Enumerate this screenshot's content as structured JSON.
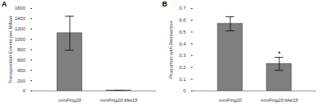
{
  "chart_data": [
    {
      "type": "bar",
      "title": "A",
      "y_label": "Transposition Events per Million",
      "categories": [
        "mmFing20",
        "mmFing20:Met15"
      ],
      "values": [
        1120,
        5
      ],
      "errors": [
        330,
        3
      ],
      "color": "#7f7f7f",
      "ylim": [
        0,
        1600
      ],
      "yticks": [
        0,
        200,
        400,
        600,
        800,
        1000,
        1200,
        1400,
        1600
      ],
      "grid": false
    },
    {
      "type": "bar",
      "title": "B",
      "y_label": "Proportion with Reinsertion",
      "categories": [
        "mmFing20",
        "mmFing20:Met15"
      ],
      "values": [
        0.57,
        0.23
      ],
      "errors": [
        0.06,
        0.055
      ],
      "color": "#7f7f7f",
      "ylim": [
        0,
        0.7
      ],
      "yticks": [
        0,
        0.1,
        0.2,
        0.3,
        0.4,
        0.5,
        0.6,
        0.7
      ],
      "grid": false,
      "annotations": [
        {
          "category": "mmFing20:Met15",
          "text": "*"
        }
      ]
    }
  ]
}
